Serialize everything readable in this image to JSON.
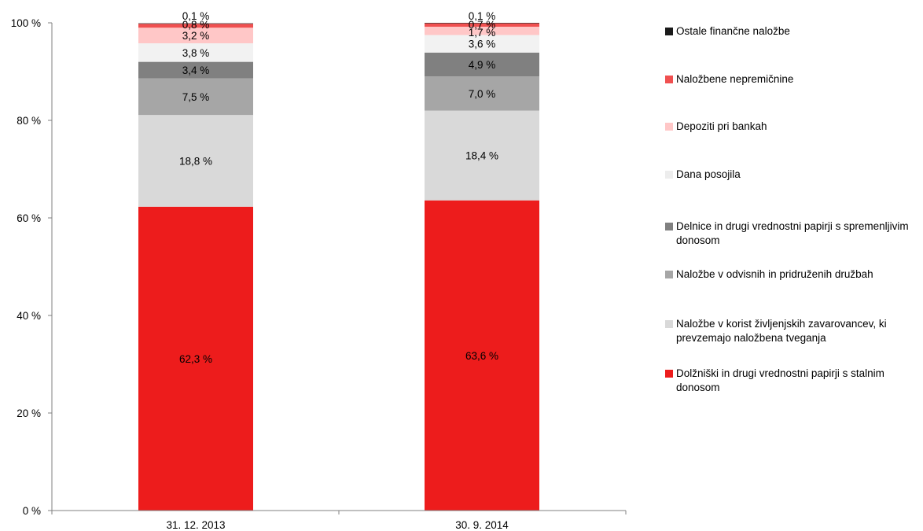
{
  "chart_data": {
    "type": "bar",
    "stacked": true,
    "categories": [
      "31. 12. 2013",
      "30. 9. 2014"
    ],
    "ylim": [
      0,
      100
    ],
    "yticks": [
      "0 %",
      "20 %",
      "40 %",
      "60 %",
      "80 %",
      "100 %"
    ],
    "ytick_values": [
      0,
      20,
      40,
      60,
      80,
      100
    ],
    "grid": false,
    "legend_position": "right",
    "series": [
      {
        "name": "Dolžniški in drugi vrednostni papirji s stalnim donosom",
        "color": "#ED1C1C",
        "values": [
          62.3,
          63.6
        ],
        "labels": [
          "62,3 %",
          "63,6 %"
        ]
      },
      {
        "name": "Naložbe v korist življenjskih zavarovancev, ki prevzemajo naložbena tveganja",
        "color": "#D9D9D9",
        "values": [
          18.8,
          18.4
        ],
        "labels": [
          "18,8 %",
          "18,4 %"
        ]
      },
      {
        "name": "Naložbe v odvisnih in pridruženih družbah",
        "color": "#A6A6A6",
        "values": [
          7.5,
          7.0
        ],
        "labels": [
          "7,5 %",
          "7,0 %"
        ]
      },
      {
        "name": "Delnice in drugi vrednostni papirji s spremenljivim donosom",
        "color": "#808080",
        "values": [
          3.4,
          4.9
        ],
        "labels": [
          "3,4 %",
          "4,9 %"
        ]
      },
      {
        "name": "Dana posojila",
        "color": "#F2F2F2",
        "values": [
          3.8,
          3.6
        ],
        "labels": [
          "3,8 %",
          "3,6 %"
        ]
      },
      {
        "name": "Depoziti pri bankah",
        "color": "#FFC7C7",
        "values": [
          3.2,
          1.7
        ],
        "labels": [
          "3,2 %",
          "1,7 %"
        ]
      },
      {
        "name": "Naložbene nepremičnine",
        "color": "#F05050",
        "values": [
          0.8,
          0.7
        ],
        "labels": [
          "0,8 %",
          "0,7 %"
        ]
      },
      {
        "name": "Ostale finančne naložbe",
        "color": "#1A1A1A",
        "values": [
          0.1,
          0.1
        ],
        "labels": [
          "0,1 %",
          "0,1 %"
        ]
      }
    ],
    "legend_order": [
      7,
      6,
      5,
      4,
      3,
      2,
      1,
      0
    ]
  }
}
